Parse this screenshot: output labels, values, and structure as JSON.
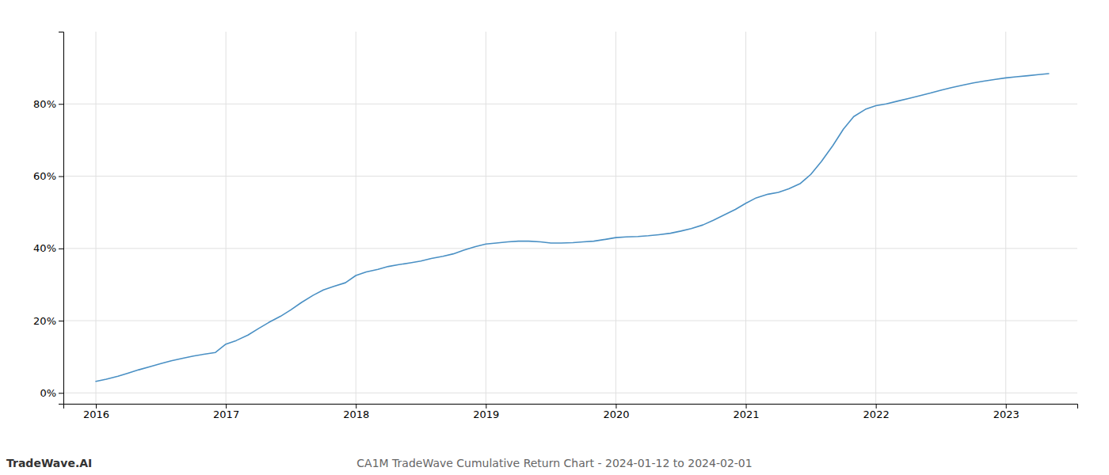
{
  "chart_data": {
    "type": "line",
    "title": "CA1M TradeWave Cumulative Return Chart - 2024-01-12 to 2024-02-01",
    "annotations": [
      "TradeWave.AI"
    ],
    "color": "#4a90c4",
    "grid": true,
    "x": [
      2016.0,
      2016.08,
      2016.17,
      2016.25,
      2016.33,
      2016.42,
      2016.5,
      2016.58,
      2016.67,
      2016.75,
      2016.83,
      2016.92,
      2017.0,
      2017.08,
      2017.17,
      2017.25,
      2017.33,
      2017.42,
      2017.5,
      2017.58,
      2017.67,
      2017.75,
      2017.83,
      2017.92,
      2018.0,
      2018.08,
      2018.17,
      2018.25,
      2018.33,
      2018.42,
      2018.5,
      2018.58,
      2018.67,
      2018.75,
      2018.83,
      2018.92,
      2019.0,
      2019.08,
      2019.17,
      2019.25,
      2019.33,
      2019.42,
      2019.5,
      2019.58,
      2019.67,
      2019.75,
      2019.83,
      2019.92,
      2020.0,
      2020.08,
      2020.17,
      2020.25,
      2020.33,
      2020.42,
      2020.5,
      2020.58,
      2020.67,
      2020.75,
      2020.83,
      2020.92,
      2021.0,
      2021.08,
      2021.17,
      2021.25,
      2021.33,
      2021.42,
      2021.5,
      2021.58,
      2021.67,
      2021.75,
      2021.83,
      2021.92,
      2022.0,
      2022.08,
      2022.17,
      2022.25,
      2022.33,
      2022.42,
      2022.5,
      2022.58,
      2022.67,
      2022.75,
      2022.83,
      2022.92,
      2023.0,
      2023.08,
      2023.17,
      2023.25,
      2023.33
    ],
    "values": [
      3.2,
      3.8,
      4.6,
      5.5,
      6.4,
      7.3,
      8.1,
      8.9,
      9.6,
      10.2,
      10.7,
      11.2,
      13.5,
      14.5,
      16.0,
      17.8,
      19.5,
      21.2,
      23.0,
      25.0,
      27.0,
      28.5,
      29.5,
      30.5,
      32.5,
      33.5,
      34.2,
      35.0,
      35.5,
      36.0,
      36.5,
      37.2,
      37.8,
      38.5,
      39.5,
      40.5,
      41.2,
      41.5,
      41.8,
      42.0,
      42.0,
      41.8,
      41.5,
      41.5,
      41.6,
      41.8,
      42.0,
      42.5,
      43.0,
      43.2,
      43.3,
      43.5,
      43.8,
      44.2,
      44.8,
      45.5,
      46.5,
      47.8,
      49.2,
      50.8,
      52.5,
      54.0,
      55.0,
      55.5,
      56.5,
      58.0,
      60.5,
      64.0,
      68.5,
      73.0,
      76.5,
      78.5,
      79.5,
      80.0,
      80.8,
      81.5,
      82.2,
      83.0,
      83.8,
      84.5,
      85.2,
      85.8,
      86.3,
      86.8,
      87.2,
      87.5,
      87.8,
      88.1,
      88.4
    ],
    "xlim": [
      2015.75,
      2023.55
    ],
    "ylim": [
      -3,
      100
    ],
    "xticks": [
      2016,
      2017,
      2018,
      2019,
      2020,
      2021,
      2022,
      2023
    ],
    "yticks": [
      {
        "value": 0,
        "label": "0%"
      },
      {
        "value": 20,
        "label": "20%"
      },
      {
        "value": 40,
        "label": "40%"
      },
      {
        "value": 60,
        "label": "60%"
      },
      {
        "value": 80,
        "label": "80%"
      }
    ]
  }
}
